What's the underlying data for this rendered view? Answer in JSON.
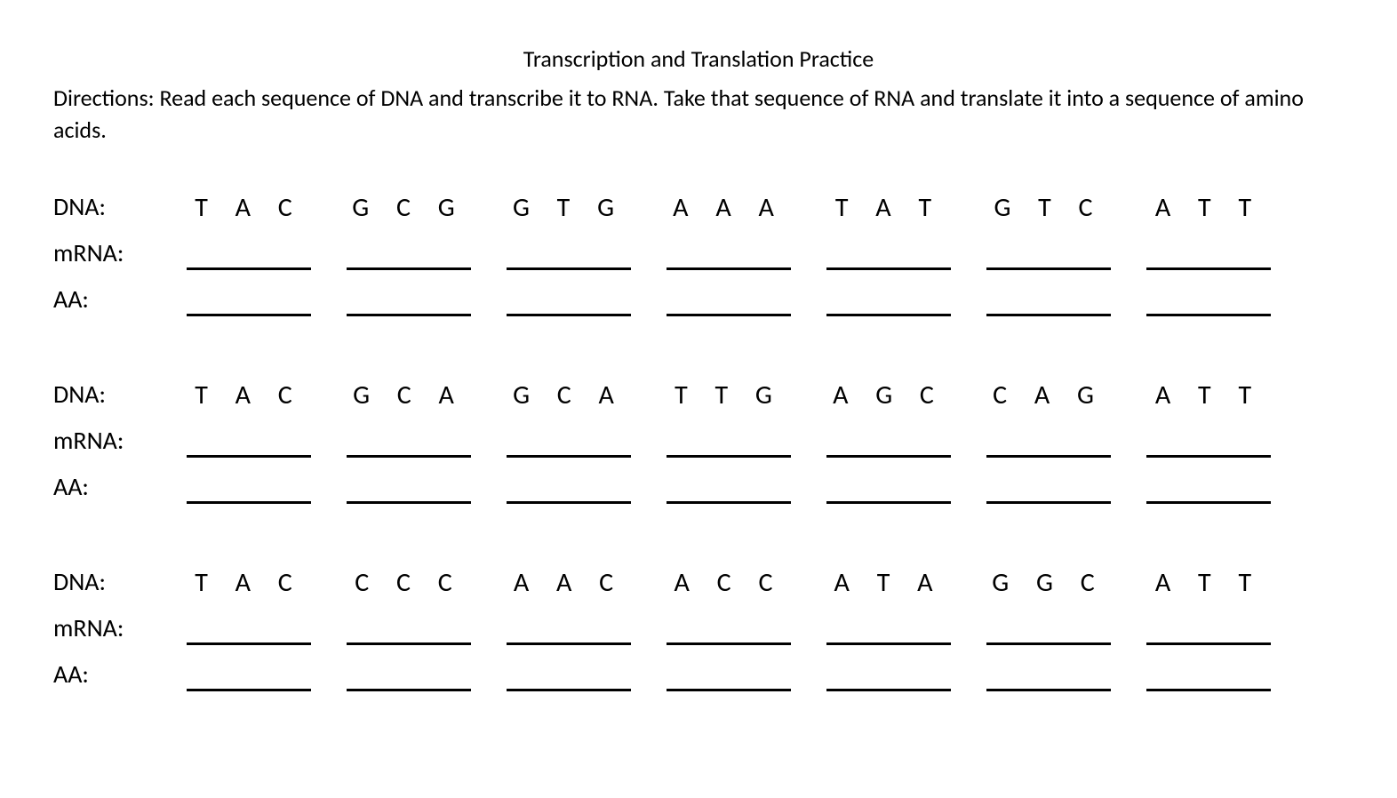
{
  "title": "Transcription and Translation Practice",
  "directions": "Directions: Read each sequence of DNA and transcribe it to RNA. Take that sequence of RNA and translate it into a sequence of amino acids.",
  "labels": {
    "dna": "DNA:",
    "mrna": "mRNA:",
    "aa": "AA:"
  },
  "problems": [
    {
      "dna": [
        "T A C",
        "G C G",
        "G T G",
        "A A A",
        "T A T",
        "G T C",
        "A T T"
      ]
    },
    {
      "dna": [
        "T A C",
        "G C A",
        "G C A",
        "T T G",
        "A G C",
        "C A G",
        "A T T"
      ]
    },
    {
      "dna": [
        "T A C",
        "C C C",
        "A A C",
        "A C C",
        "A T A",
        "G G C",
        "A T T"
      ]
    }
  ],
  "styling": {
    "background_color": "#ffffff",
    "text_color": "#000000",
    "font_family": "Calibri, Arial, sans-serif",
    "title_fontsize": 26,
    "directions_fontsize": 26,
    "label_fontsize": 28,
    "codon_fontsize": 30,
    "codon_letter_spacing": 12,
    "blank_border_width": 3,
    "blank_border_color": "#000000",
    "codon_width": 140,
    "codon_gap": 40,
    "label_width": 150
  }
}
